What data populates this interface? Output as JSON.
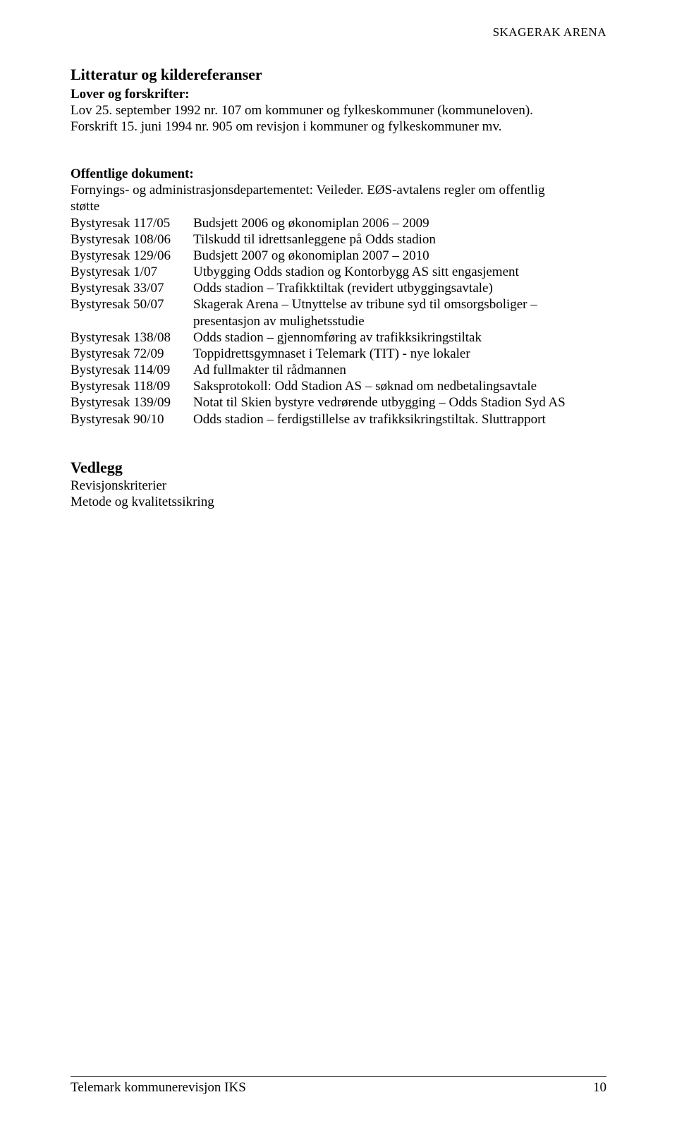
{
  "header": {
    "running": "SKAGERAK ARENA"
  },
  "title": "Litteratur og kildereferanser",
  "lover": {
    "heading": "Lover og forskrifter:",
    "line1": "Lov 25. september 1992 nr. 107 om kommuner og fylkeskommuner (kommuneloven).",
    "line2": "Forskrift 15. juni 1994 nr. 905 om revisjon i kommuner og fylkeskommuner mv."
  },
  "offentlige": {
    "heading": "Offentlige dokument:",
    "intro1": "Fornyings- og administrasjonsdepartementet: Veileder. EØS-avtalens regler om offentlig",
    "intro2": "støtte",
    "rows": [
      {
        "l": "Bystyresak 117/05",
        "r": "Budsjett 2006 og økonomiplan 2006 – 2009"
      },
      {
        "l": "Bystyresak 108/06",
        "r": "Tilskudd til idrettsanleggene på Odds stadion"
      },
      {
        "l": "Bystyresak 129/06",
        "r": "Budsjett 2007 og økonomiplan 2007 – 2010"
      },
      {
        "l": "Bystyresak 1/07",
        "r": "Utbygging Odds stadion og Kontorbygg AS sitt engasjement"
      },
      {
        "l": "Bystyresak 33/07",
        "r": "Odds stadion – Trafikktiltak (revidert utbyggingsavtale)"
      },
      {
        "l": "Bystyresak 50/07",
        "r": "Skagerak Arena – Utnyttelse av tribune syd til omsorgsboliger – presentasjon av mulighetsstudie"
      },
      {
        "l": "Bystyresak 138/08",
        "r": "Odds stadion – gjennomføring av trafikksikringstiltak"
      },
      {
        "l": "Bystyresak 72/09",
        "r": "Toppidrettsgymnaset i Telemark (TIT) - nye lokaler"
      },
      {
        "l": "Bystyresak 114/09",
        "r": "Ad fullmakter til rådmannen"
      },
      {
        "l": "Bystyresak 118/09",
        "r": "Saksprotokoll: Odd Stadion AS – søknad om nedbetalingsavtale"
      },
      {
        "l": "Bystyresak 139/09",
        "r": "Notat til Skien bystyre vedrørende utbygging – Odds Stadion Syd AS"
      },
      {
        "l": "Bystyresak 90/10",
        "r": "Odds stadion – ferdigstillelse av trafikksikringstiltak. Sluttrapport"
      }
    ]
  },
  "vedlegg": {
    "heading": "Vedlegg",
    "line1": "Revisjonskriterier",
    "line2": "Metode og kvalitetssikring"
  },
  "footer": {
    "left": "Telemark kommunerevisjon IKS",
    "page": "10"
  }
}
